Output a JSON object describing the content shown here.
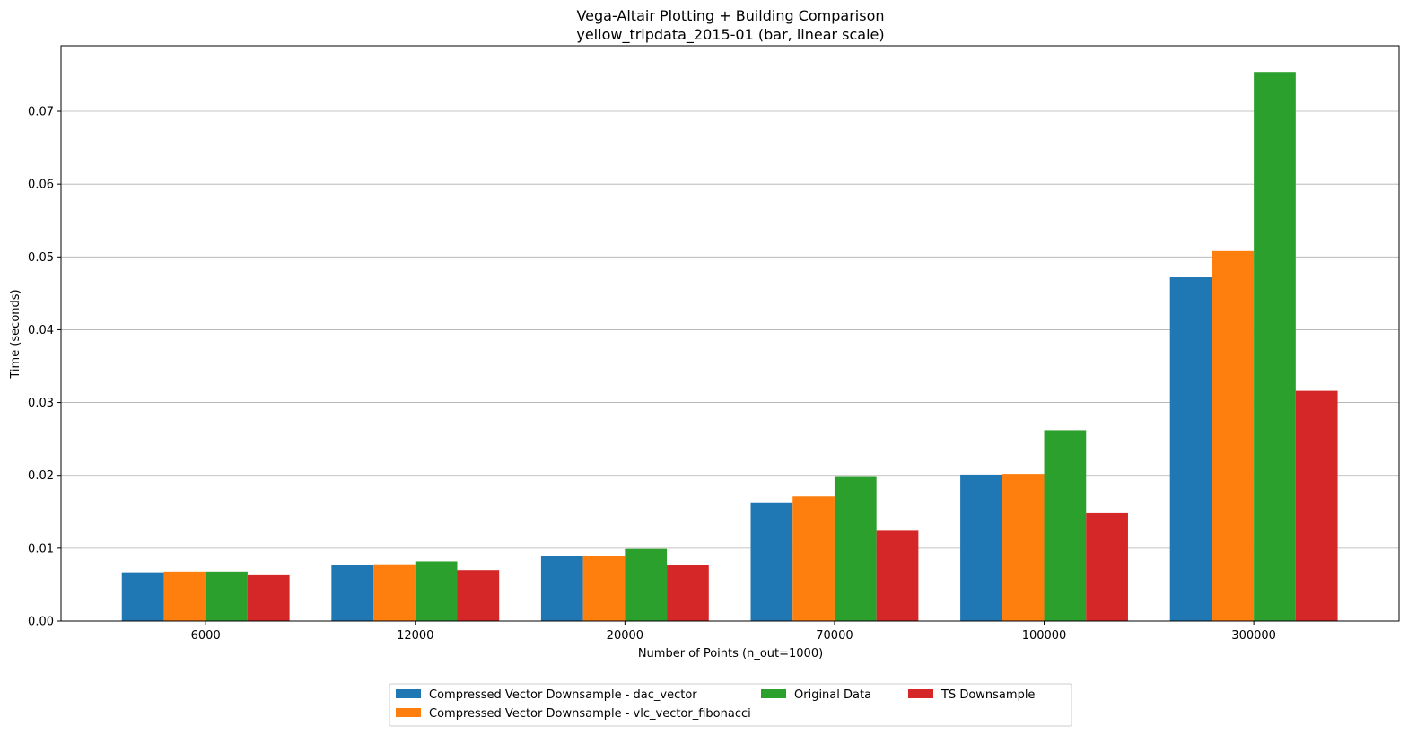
{
  "chart_data": {
    "type": "bar",
    "title": "Vega-Altair Plotting + Building Comparison",
    "subtitle": "yellow_tripdata_2015-01 (bar, linear scale)",
    "xlabel": "Number of Points (n_out=1000)",
    "ylabel": "Time (seconds)",
    "categories": [
      "6000",
      "12000",
      "20000",
      "70000",
      "100000",
      "300000"
    ],
    "ylim": [
      0,
      0.079
    ],
    "yticks": [
      "0.00",
      "0.01",
      "0.02",
      "0.03",
      "0.04",
      "0.05",
      "0.06",
      "0.07"
    ],
    "grid": "horizontal",
    "legend_position": "bottom-center",
    "series": [
      {
        "name": "Compressed Vector Downsample - dac_vector",
        "color": "#1f77b4",
        "values": [
          0.0067,
          0.0077,
          0.0089,
          0.0163,
          0.0201,
          0.0472
        ]
      },
      {
        "name": "Compressed Vector Downsample - vlc_vector_fibonacci",
        "color": "#ff7f0e",
        "values": [
          0.0068,
          0.0078,
          0.0089,
          0.0171,
          0.0202,
          0.0508
        ]
      },
      {
        "name": "Original Data",
        "color": "#2ca02c",
        "values": [
          0.0068,
          0.0082,
          0.0099,
          0.0199,
          0.0262,
          0.0754
        ]
      },
      {
        "name": "TS Downsample",
        "color": "#d62728",
        "values": [
          0.0063,
          0.007,
          0.0077,
          0.0124,
          0.0148,
          0.0316
        ]
      }
    ]
  }
}
